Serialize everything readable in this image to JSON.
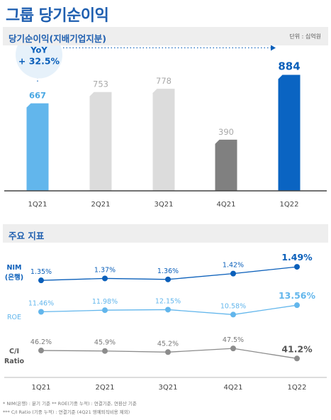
{
  "title": "그룹 당기순이익",
  "chart_data": [
    {
      "type": "bar",
      "title": "당기순이익(지배기업지분)",
      "unit_label": "단위 : 십억원",
      "categories": [
        "1Q21",
        "2Q21",
        "3Q21",
        "4Q21",
        "1Q22"
      ],
      "values": [
        667,
        753,
        778,
        390,
        884
      ],
      "colors": [
        "#62b6ec",
        "#dcdcdc",
        "#dcdcdc",
        "#808080",
        "#0a64c2"
      ],
      "label_colors": [
        "#4aa8e3",
        "#a8a8a8",
        "#a8a8a8",
        "#a8a8a8",
        "#0a5fba"
      ],
      "ylim": [
        0,
        1000
      ],
      "annotation": {
        "line1": "YoY",
        "line2": "+ 32.5%"
      }
    },
    {
      "type": "line",
      "title": "주요 지표",
      "categories": [
        "1Q21",
        "2Q21",
        "3Q21",
        "4Q21",
        "1Q22"
      ],
      "series": [
        {
          "name": "NIM\n(은행)",
          "values": [
            1.35,
            1.37,
            1.36,
            1.42,
            1.49
          ],
          "labels": [
            "1.35%",
            "1.37%",
            "1.36%",
            "1.42%",
            "1.49%"
          ],
          "color": "#0a5fba"
        },
        {
          "name": "ROE",
          "values": [
            11.46,
            11.98,
            12.15,
            10.58,
            13.56
          ],
          "labels": [
            "11.46%",
            "11.98%",
            "12.15%",
            "10.58%",
            "13.56%"
          ],
          "color": "#62b6ec"
        },
        {
          "name": "C/I\nRatio",
          "values": [
            46.2,
            45.9,
            45.2,
            47.5,
            41.2
          ],
          "labels": [
            "46.2%",
            "45.9%",
            "45.2%",
            "47.5%",
            "41.2%"
          ],
          "color": "#8c8c8c"
        }
      ]
    }
  ],
  "footnotes": [
    "* NIM(은행) : 분기 기준    ** ROE(기중 누적) : 연결기준, 연환산 기준",
    "*** C/I Ratio (기중 누적) : 연결기준 (4Q21 영예퇴직비용 제외)"
  ]
}
